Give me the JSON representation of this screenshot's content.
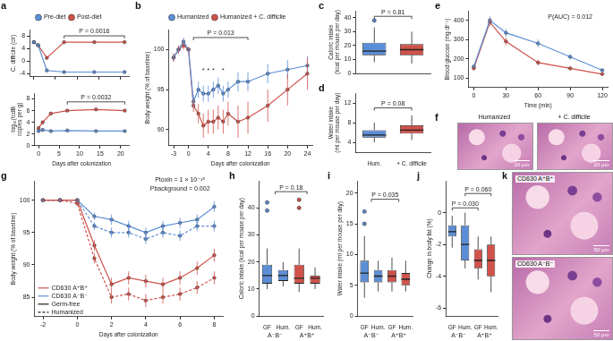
{
  "chart_data": [
    {
      "panel": "a",
      "type": "line",
      "y_label": "C. difficile (clr)",
      "x": [
        0,
        1,
        3,
        7,
        14,
        21
      ],
      "series": [
        {
          "name": "Pre-diet",
          "color": "#5b8ed6",
          "values": [
            6,
            5,
            -3,
            -3.5,
            -3.5,
            -3.5
          ]
        },
        {
          "name": "Post-diet",
          "color": "#d0524a",
          "values": [
            6,
            5,
            1,
            6,
            6,
            6
          ]
        }
      ],
      "marker": "circle",
      "xlim": [
        -1,
        22
      ],
      "xticks": [
        0,
        5,
        10,
        15,
        20
      ],
      "ylim": [
        -5,
        10
      ],
      "yticks": [
        -4,
        0,
        4,
        8
      ],
      "legend": "top",
      "tick_labels": "y",
      "annotations": [
        {
          "text": "P = 0.0016",
          "x1": 7,
          "x2": 21,
          "y": 8
        }
      ]
    },
    {
      "type": "line",
      "x_label": "Days after colonization",
      "y_label": [
        "log₁₀(tcdB",
        "copies per g)"
      ],
      "x": [
        0,
        1,
        3,
        7,
        14,
        21
      ],
      "series": [
        {
          "color": "#5b8ed6",
          "values": [
            2.5,
            2.7,
            2.5,
            2.6,
            2.5,
            2.5
          ]
        },
        {
          "color": "#d0524a",
          "values": [
            3,
            4,
            5.5,
            6,
            6.2,
            6
          ]
        }
      ],
      "marker": "circle",
      "xlim": [
        -1,
        22
      ],
      "xticks": [
        0,
        5,
        10,
        15,
        20
      ],
      "ylim": [
        0,
        9
      ],
      "yticks": [
        0,
        2,
        4,
        6,
        8
      ],
      "annotations": [
        {
          "text": "P = 0.0032",
          "x1": 7,
          "x2": 21,
          "y": 7.5
        }
      ]
    },
    {
      "panel": "b",
      "type": "line",
      "x_label": "Days after colonization",
      "y_label": "Body weight (% of baseline)",
      "x": [
        -3,
        -2,
        -1,
        0,
        1,
        2,
        3,
        4,
        5,
        6,
        7,
        8,
        10,
        12,
        16,
        20,
        24
      ],
      "series": [
        {
          "name": "Humanized",
          "color": "#5b8ed6",
          "values": [
            99,
            100,
            101,
            100,
            93.5,
            95,
            94.5,
            94.5,
            95,
            95.5,
            94.5,
            95,
            96,
            96,
            97,
            97.5,
            98
          ],
          "errors": [
            0.5,
            0.5,
            0.5,
            0.3,
            0.8,
            1,
            1,
            1,
            1,
            1,
            1,
            1,
            1.2,
            1.2,
            1.2,
            1.2,
            1.2
          ]
        },
        {
          "name": "Humanized + C. difficile",
          "color": "#d0524a",
          "values": [
            99,
            100,
            100.5,
            100,
            93,
            92,
            90.5,
            91,
            91,
            91.5,
            91,
            92,
            91,
            91.5,
            93,
            95,
            97
          ],
          "errors": [
            0.5,
            0.5,
            0.5,
            0.3,
            0.8,
            1.2,
            1.5,
            1.5,
            1.5,
            1.5,
            1.5,
            1.5,
            2,
            2,
            2,
            2,
            2
          ]
        }
      ],
      "marker": "circle",
      "xlim": [
        -4,
        25
      ],
      "xticks": [
        -3,
        0,
        4,
        8,
        12,
        16,
        20,
        24
      ],
      "ylim": [
        88,
        102.5
      ],
      "yticks": [
        90,
        95,
        100
      ],
      "legend": "top",
      "annotations": [
        {
          "text": "P = 0.013",
          "x1": 1,
          "x2": 12,
          "y": 101.5
        },
        {
          "text": "*",
          "x": 3,
          "y": 97
        },
        {
          "text": "*",
          "x": 4,
          "y": 97
        },
        {
          "text": "*",
          "x": 5,
          "y": 97
        },
        {
          "text": "*",
          "x": 7,
          "y": 97
        }
      ]
    },
    {
      "panel": "c",
      "type": "box",
      "y_label": [
        "Caloric intake",
        "(kcal per mouse per day)"
      ],
      "categories": [
        "Hum.",
        "+ C. difficile"
      ],
      "colors": [
        "#5b8ed6",
        "#d0524a"
      ],
      "boxes": [
        {
          "min": 8,
          "q1": 13,
          "median": 16,
          "q3": 22,
          "max": 33,
          "outliers": [
            38
          ]
        },
        {
          "min": 7,
          "q1": 13,
          "median": 17,
          "q3": 21,
          "max": 30,
          "outliers": []
        }
      ],
      "ylim": [
        0,
        45
      ],
      "yticks": [
        0,
        10,
        20,
        30,
        40
      ],
      "tick_labels": "y",
      "annotations": [
        {
          "text": "P = 0.81",
          "x1": 0,
          "x2": 1,
          "y": 41
        }
      ]
    },
    {
      "panel": "d",
      "type": "box",
      "y_label": [
        "Water intake",
        "(ml per mouse per day)"
      ],
      "categories": [
        "Hum.",
        "+ C. difficile"
      ],
      "colors": [
        "#5b8ed6",
        "#d0524a"
      ],
      "boxes": [
        {
          "min": 4,
          "q1": 5,
          "median": 5.5,
          "q3": 6.5,
          "max": 8,
          "outliers": []
        },
        {
          "min": 4.5,
          "q1": 5.8,
          "median": 6.5,
          "q3": 7.5,
          "max": 9.5,
          "outliers": []
        }
      ],
      "ylim": [
        2,
        14
      ],
      "yticks": [
        4,
        8,
        12
      ],
      "annotations": [
        {
          "text": "P = 0.08",
          "x1": 0,
          "x2": 1,
          "y": 11
        }
      ]
    },
    {
      "panel": "e",
      "type": "line",
      "x_label": "Time (min)",
      "y_label": "Blood glucose (mg dl⁻¹)",
      "x": [
        0,
        15,
        30,
        60,
        90,
        120
      ],
      "series": [
        {
          "color": "#5b8ed6",
          "values": [
            160,
            400,
            335,
            280,
            210,
            140
          ],
          "errors": [
            10,
            20,
            20,
            20,
            15,
            10
          ]
        },
        {
          "color": "#d0524a",
          "values": [
            150,
            390,
            290,
            180,
            150,
            120
          ],
          "errors": [
            10,
            20,
            20,
            15,
            10,
            10
          ]
        }
      ],
      "marker": "circle",
      "xlim": [
        -5,
        125
      ],
      "xticks": [
        0,
        30,
        60,
        90,
        120
      ],
      "ylim": [
        50,
        450
      ],
      "yticks": [
        100,
        200,
        300,
        400
      ],
      "annotations": [
        {
          "text": "P(AUC) = 0.012",
          "x": 90,
          "y": 400
        }
      ]
    },
    {
      "panel": "g",
      "type": "line",
      "x_label": "Days after colonization",
      "y_label": "Body weight (% of baseline)",
      "x": [
        -2,
        -1,
        0,
        1,
        2,
        3,
        4,
        5,
        6,
        7,
        8
      ],
      "series": [
        {
          "color": "#d0524a",
          "line_style": "solid",
          "values": [
            100,
            100,
            100,
            93,
            87,
            88,
            87.5,
            87,
            88,
            89.5,
            91.5
          ],
          "errors": [
            0.3,
            0.3,
            0.3,
            0.8,
            1,
            1,
            1,
            1,
            1,
            1,
            1
          ]
        },
        {
          "color": "#d0524a",
          "line_style": "dashed",
          "values": [
            100,
            100,
            99.5,
            91,
            85,
            85.5,
            84.5,
            85,
            85.5,
            86.5,
            88
          ],
          "errors": [
            0.3,
            0.3,
            0.3,
            0.8,
            1,
            1,
            1,
            1,
            1,
            1,
            1
          ]
        },
        {
          "color": "#5b8ed6",
          "line_style": "solid",
          "values": [
            100,
            100,
            100,
            97.5,
            97,
            96,
            95,
            96,
            96.5,
            97,
            99
          ],
          "errors": [
            0.3,
            0.3,
            0.3,
            0.6,
            0.8,
            0.8,
            0.8,
            0.8,
            0.8,
            0.8,
            0.8
          ]
        },
        {
          "color": "#5b8ed6",
          "line_style": "dashed",
          "values": [
            100,
            100,
            100,
            96,
            95,
            95,
            94,
            95,
            94.5,
            96,
            96
          ],
          "errors": [
            0.3,
            0.3,
            0.3,
            0.6,
            0.8,
            0.8,
            0.8,
            0.8,
            0.8,
            0.8,
            0.8
          ]
        }
      ],
      "marker": "circle",
      "xlim": [
        -2.5,
        8.5
      ],
      "xticks": [
        -2,
        0,
        2,
        4,
        6,
        8
      ],
      "ylim": [
        82,
        103
      ],
      "yticks": [
        85,
        90,
        95,
        100
      ],
      "legend": "lower left",
      "legend_items": [
        {
          "label": "CD630 A⁺B⁺",
          "color": "#d0524a",
          "line_style": "solid"
        },
        {
          "label": "CD630 A⁻B⁻",
          "color": "#5b8ed6",
          "line_style": "solid"
        },
        {
          "label": "Germ-free",
          "color": "#222222",
          "line_style": "solid"
        },
        {
          "label": "Humanized",
          "color": "#222222",
          "line_style": "dashed"
        }
      ],
      "annotations": [
        {
          "text": "Ptoxin = 1 × 10⁻¹⁵",
          "x": 6,
          "y": 102.6
        },
        {
          "text": "Pbackground = 0.002",
          "x": 6,
          "y": 101.2
        }
      ]
    },
    {
      "panel": "h",
      "type": "box",
      "y_label": "Caloric intake (kcal per mouse per day)",
      "categories": [
        "GF",
        "Hum.",
        "GF",
        "Hum."
      ],
      "groups": [
        {
          "label": "A⁻B⁻",
          "from": 0,
          "to": 1
        },
        {
          "label": "A⁺B⁺",
          "from": 2,
          "to": 3
        }
      ],
      "colors": [
        "#5b8ed6",
        "#5b8ed6",
        "#d0524a",
        "#d0524a"
      ],
      "boxes": [
        {
          "min": 10,
          "q1": 12,
          "median": 15,
          "q3": 19,
          "max": 25,
          "outliers": [
            39,
            42
          ]
        },
        {
          "min": 11,
          "q1": 13,
          "median": 15,
          "q3": 17,
          "max": 20,
          "outliers": []
        },
        {
          "min": 9,
          "q1": 12,
          "median": 14,
          "q3": 19,
          "max": 25,
          "outliers": [
            40,
            43
          ]
        },
        {
          "min": 10,
          "q1": 12,
          "median": 14,
          "q3": 15,
          "max": 18,
          "outliers": []
        }
      ],
      "ylim": [
        0,
        50
      ],
      "yticks": [
        0,
        10,
        20,
        30,
        40
      ],
      "annotations": [
        {
          "text": "P = 0.18",
          "x1": 0.5,
          "x2": 2.5,
          "y": 46
        }
      ]
    },
    {
      "panel": "i",
      "type": "box",
      "y_label": "Water intake (ml per mouse per day)",
      "categories": [
        "GF",
        "Hum.",
        "GF",
        "Hum."
      ],
      "groups": [
        {
          "label": "A⁻B⁻",
          "from": 0,
          "to": 1
        },
        {
          "label": "A⁺B⁺",
          "from": 2,
          "to": 3
        }
      ],
      "colors": [
        "#5b8ed6",
        "#5b8ed6",
        "#d0524a",
        "#d0524a"
      ],
      "boxes": [
        {
          "min": 3,
          "q1": 5.5,
          "median": 7,
          "q3": 9,
          "max": 13,
          "outliers": [
            15,
            17
          ]
        },
        {
          "min": 4,
          "q1": 5.5,
          "median": 6.5,
          "q3": 7.5,
          "max": 9,
          "outliers": []
        },
        {
          "min": 4,
          "q1": 5.5,
          "median": 6.5,
          "q3": 7.5,
          "max": 9.5,
          "outliers": []
        },
        {
          "min": 4,
          "q1": 5,
          "median": 6,
          "q3": 7,
          "max": 9,
          "outliers": []
        }
      ],
      "ylim": [
        0,
        22
      ],
      "yticks": [
        0,
        5,
        10,
        15,
        20
      ],
      "annotations": [
        {
          "text": "P = 0.035",
          "x1": 0.5,
          "x2": 2.5,
          "y": 19
        }
      ]
    },
    {
      "panel": "j",
      "type": "box",
      "y_label": "Change in body fat (%)",
      "categories": [
        "GF",
        "Hum.",
        "GF",
        "Hum."
      ],
      "groups": [
        {
          "label": "A⁻B⁻",
          "from": 0,
          "to": 1
        },
        {
          "label": "A⁺B⁺",
          "from": 2,
          "to": 3
        }
      ],
      "colors": [
        "#5b8ed6",
        "#5b8ed6",
        "#d0524a",
        "#d0524a"
      ],
      "boxes": [
        {
          "min": -2.2,
          "q1": -1.5,
          "median": -1.2,
          "q3": -0.8,
          "max": -0.2,
          "outliers": []
        },
        {
          "min": -3.5,
          "q1": -3,
          "median": -2,
          "q3": -0.8,
          "max": 0,
          "outliers": []
        },
        {
          "min": -4.2,
          "q1": -3.5,
          "median": -3,
          "q3": -2.3,
          "max": -1.5,
          "outliers": []
        },
        {
          "min": -5,
          "q1": -4,
          "median": -3,
          "q3": -2,
          "max": -1.5,
          "outliers": []
        }
      ],
      "ylim": [
        -6.5,
        2
      ],
      "yticks": [
        -6,
        -4,
        -2,
        0
      ],
      "annotations": [
        {
          "text": "P = 0.030",
          "x1": 0,
          "x2": 2,
          "y": 0.3
        },
        {
          "text": "P = 0.060",
          "x1": 1,
          "x2": 3,
          "y": 1.2
        }
      ]
    }
  ],
  "images": [
    {
      "panel": "f",
      "items": [
        {
          "caption": "Humanized",
          "scale_bar": "20 µm"
        },
        {
          "caption": "+ C. difficile",
          "scale_bar": "20 µm"
        }
      ]
    },
    {
      "panel": "k",
      "items": [
        {
          "caption": "CD630 A⁺B⁺",
          "scale_bar": "50 µm"
        },
        {
          "caption": "CD630 A⁻B⁻",
          "scale_bar": "50 µm"
        }
      ]
    }
  ]
}
